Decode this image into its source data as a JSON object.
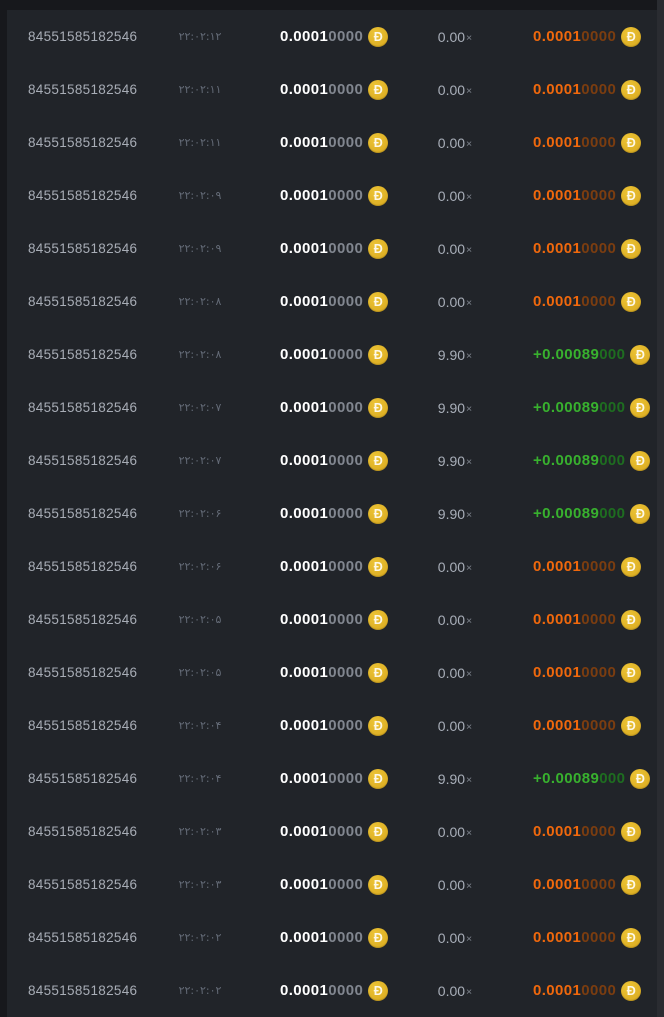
{
  "coin_symbol": "Đ",
  "mult_symbol": "×",
  "colors": {
    "page_background": "#17181c",
    "table_background": "#212429",
    "loss_orange": "#f0680c",
    "loss_orange_dim": "#7b3d10",
    "win_green": "#38b12e",
    "win_green_dim": "#1e6d20",
    "coin_gold": "#e2b31f"
  },
  "rows": [
    {
      "id": "84551585182546",
      "time": "۲۲:۰۲:۱۲",
      "bet_main": "0.0001",
      "bet_rest": "0000",
      "mult": "0.00",
      "profit_main": "0.0001",
      "profit_rest": "0000",
      "outcome": "loss"
    },
    {
      "id": "84551585182546",
      "time": "۲۲:۰۲:۱۱",
      "bet_main": "0.0001",
      "bet_rest": "0000",
      "mult": "0.00",
      "profit_main": "0.0001",
      "profit_rest": "0000",
      "outcome": "loss"
    },
    {
      "id": "84551585182546",
      "time": "۲۲:۰۲:۱۱",
      "bet_main": "0.0001",
      "bet_rest": "0000",
      "mult": "0.00",
      "profit_main": "0.0001",
      "profit_rest": "0000",
      "outcome": "loss"
    },
    {
      "id": "84551585182546",
      "time": "۲۲:۰۲:۰۹",
      "bet_main": "0.0001",
      "bet_rest": "0000",
      "mult": "0.00",
      "profit_main": "0.0001",
      "profit_rest": "0000",
      "outcome": "loss"
    },
    {
      "id": "84551585182546",
      "time": "۲۲:۰۲:۰۹",
      "bet_main": "0.0001",
      "bet_rest": "0000",
      "mult": "0.00",
      "profit_main": "0.0001",
      "profit_rest": "0000",
      "outcome": "loss"
    },
    {
      "id": "84551585182546",
      "time": "۲۲:۰۲:۰۸",
      "bet_main": "0.0001",
      "bet_rest": "0000",
      "mult": "0.00",
      "profit_main": "0.0001",
      "profit_rest": "0000",
      "outcome": "loss"
    },
    {
      "id": "84551585182546",
      "time": "۲۲:۰۲:۰۸",
      "bet_main": "0.0001",
      "bet_rest": "0000",
      "mult": "9.90",
      "profit_main": "+0.00089",
      "profit_rest": "000",
      "outcome": "win"
    },
    {
      "id": "84551585182546",
      "time": "۲۲:۰۲:۰۷",
      "bet_main": "0.0001",
      "bet_rest": "0000",
      "mult": "9.90",
      "profit_main": "+0.00089",
      "profit_rest": "000",
      "outcome": "win"
    },
    {
      "id": "84551585182546",
      "time": "۲۲:۰۲:۰۷",
      "bet_main": "0.0001",
      "bet_rest": "0000",
      "mult": "9.90",
      "profit_main": "+0.00089",
      "profit_rest": "000",
      "outcome": "win"
    },
    {
      "id": "84551585182546",
      "time": "۲۲:۰۲:۰۶",
      "bet_main": "0.0001",
      "bet_rest": "0000",
      "mult": "9.90",
      "profit_main": "+0.00089",
      "profit_rest": "000",
      "outcome": "win"
    },
    {
      "id": "84551585182546",
      "time": "۲۲:۰۲:۰۶",
      "bet_main": "0.0001",
      "bet_rest": "0000",
      "mult": "0.00",
      "profit_main": "0.0001",
      "profit_rest": "0000",
      "outcome": "loss"
    },
    {
      "id": "84551585182546",
      "time": "۲۲:۰۲:۰۵",
      "bet_main": "0.0001",
      "bet_rest": "0000",
      "mult": "0.00",
      "profit_main": "0.0001",
      "profit_rest": "0000",
      "outcome": "loss"
    },
    {
      "id": "84551585182546",
      "time": "۲۲:۰۲:۰۵",
      "bet_main": "0.0001",
      "bet_rest": "0000",
      "mult": "0.00",
      "profit_main": "0.0001",
      "profit_rest": "0000",
      "outcome": "loss"
    },
    {
      "id": "84551585182546",
      "time": "۲۲:۰۲:۰۴",
      "bet_main": "0.0001",
      "bet_rest": "0000",
      "mult": "0.00",
      "profit_main": "0.0001",
      "profit_rest": "0000",
      "outcome": "loss"
    },
    {
      "id": "84551585182546",
      "time": "۲۲:۰۲:۰۴",
      "bet_main": "0.0001",
      "bet_rest": "0000",
      "mult": "9.90",
      "profit_main": "+0.00089",
      "profit_rest": "000",
      "outcome": "win"
    },
    {
      "id": "84551585182546",
      "time": "۲۲:۰۲:۰۳",
      "bet_main": "0.0001",
      "bet_rest": "0000",
      "mult": "0.00",
      "profit_main": "0.0001",
      "profit_rest": "0000",
      "outcome": "loss"
    },
    {
      "id": "84551585182546",
      "time": "۲۲:۰۲:۰۳",
      "bet_main": "0.0001",
      "bet_rest": "0000",
      "mult": "0.00",
      "profit_main": "0.0001",
      "profit_rest": "0000",
      "outcome": "loss"
    },
    {
      "id": "84551585182546",
      "time": "۲۲:۰۲:۰۲",
      "bet_main": "0.0001",
      "bet_rest": "0000",
      "mult": "0.00",
      "profit_main": "0.0001",
      "profit_rest": "0000",
      "outcome": "loss"
    },
    {
      "id": "84551585182546",
      "time": "۲۲:۰۲:۰۲",
      "bet_main": "0.0001",
      "bet_rest": "0000",
      "mult": "0.00",
      "profit_main": "0.0001",
      "profit_rest": "0000",
      "outcome": "loss"
    }
  ]
}
